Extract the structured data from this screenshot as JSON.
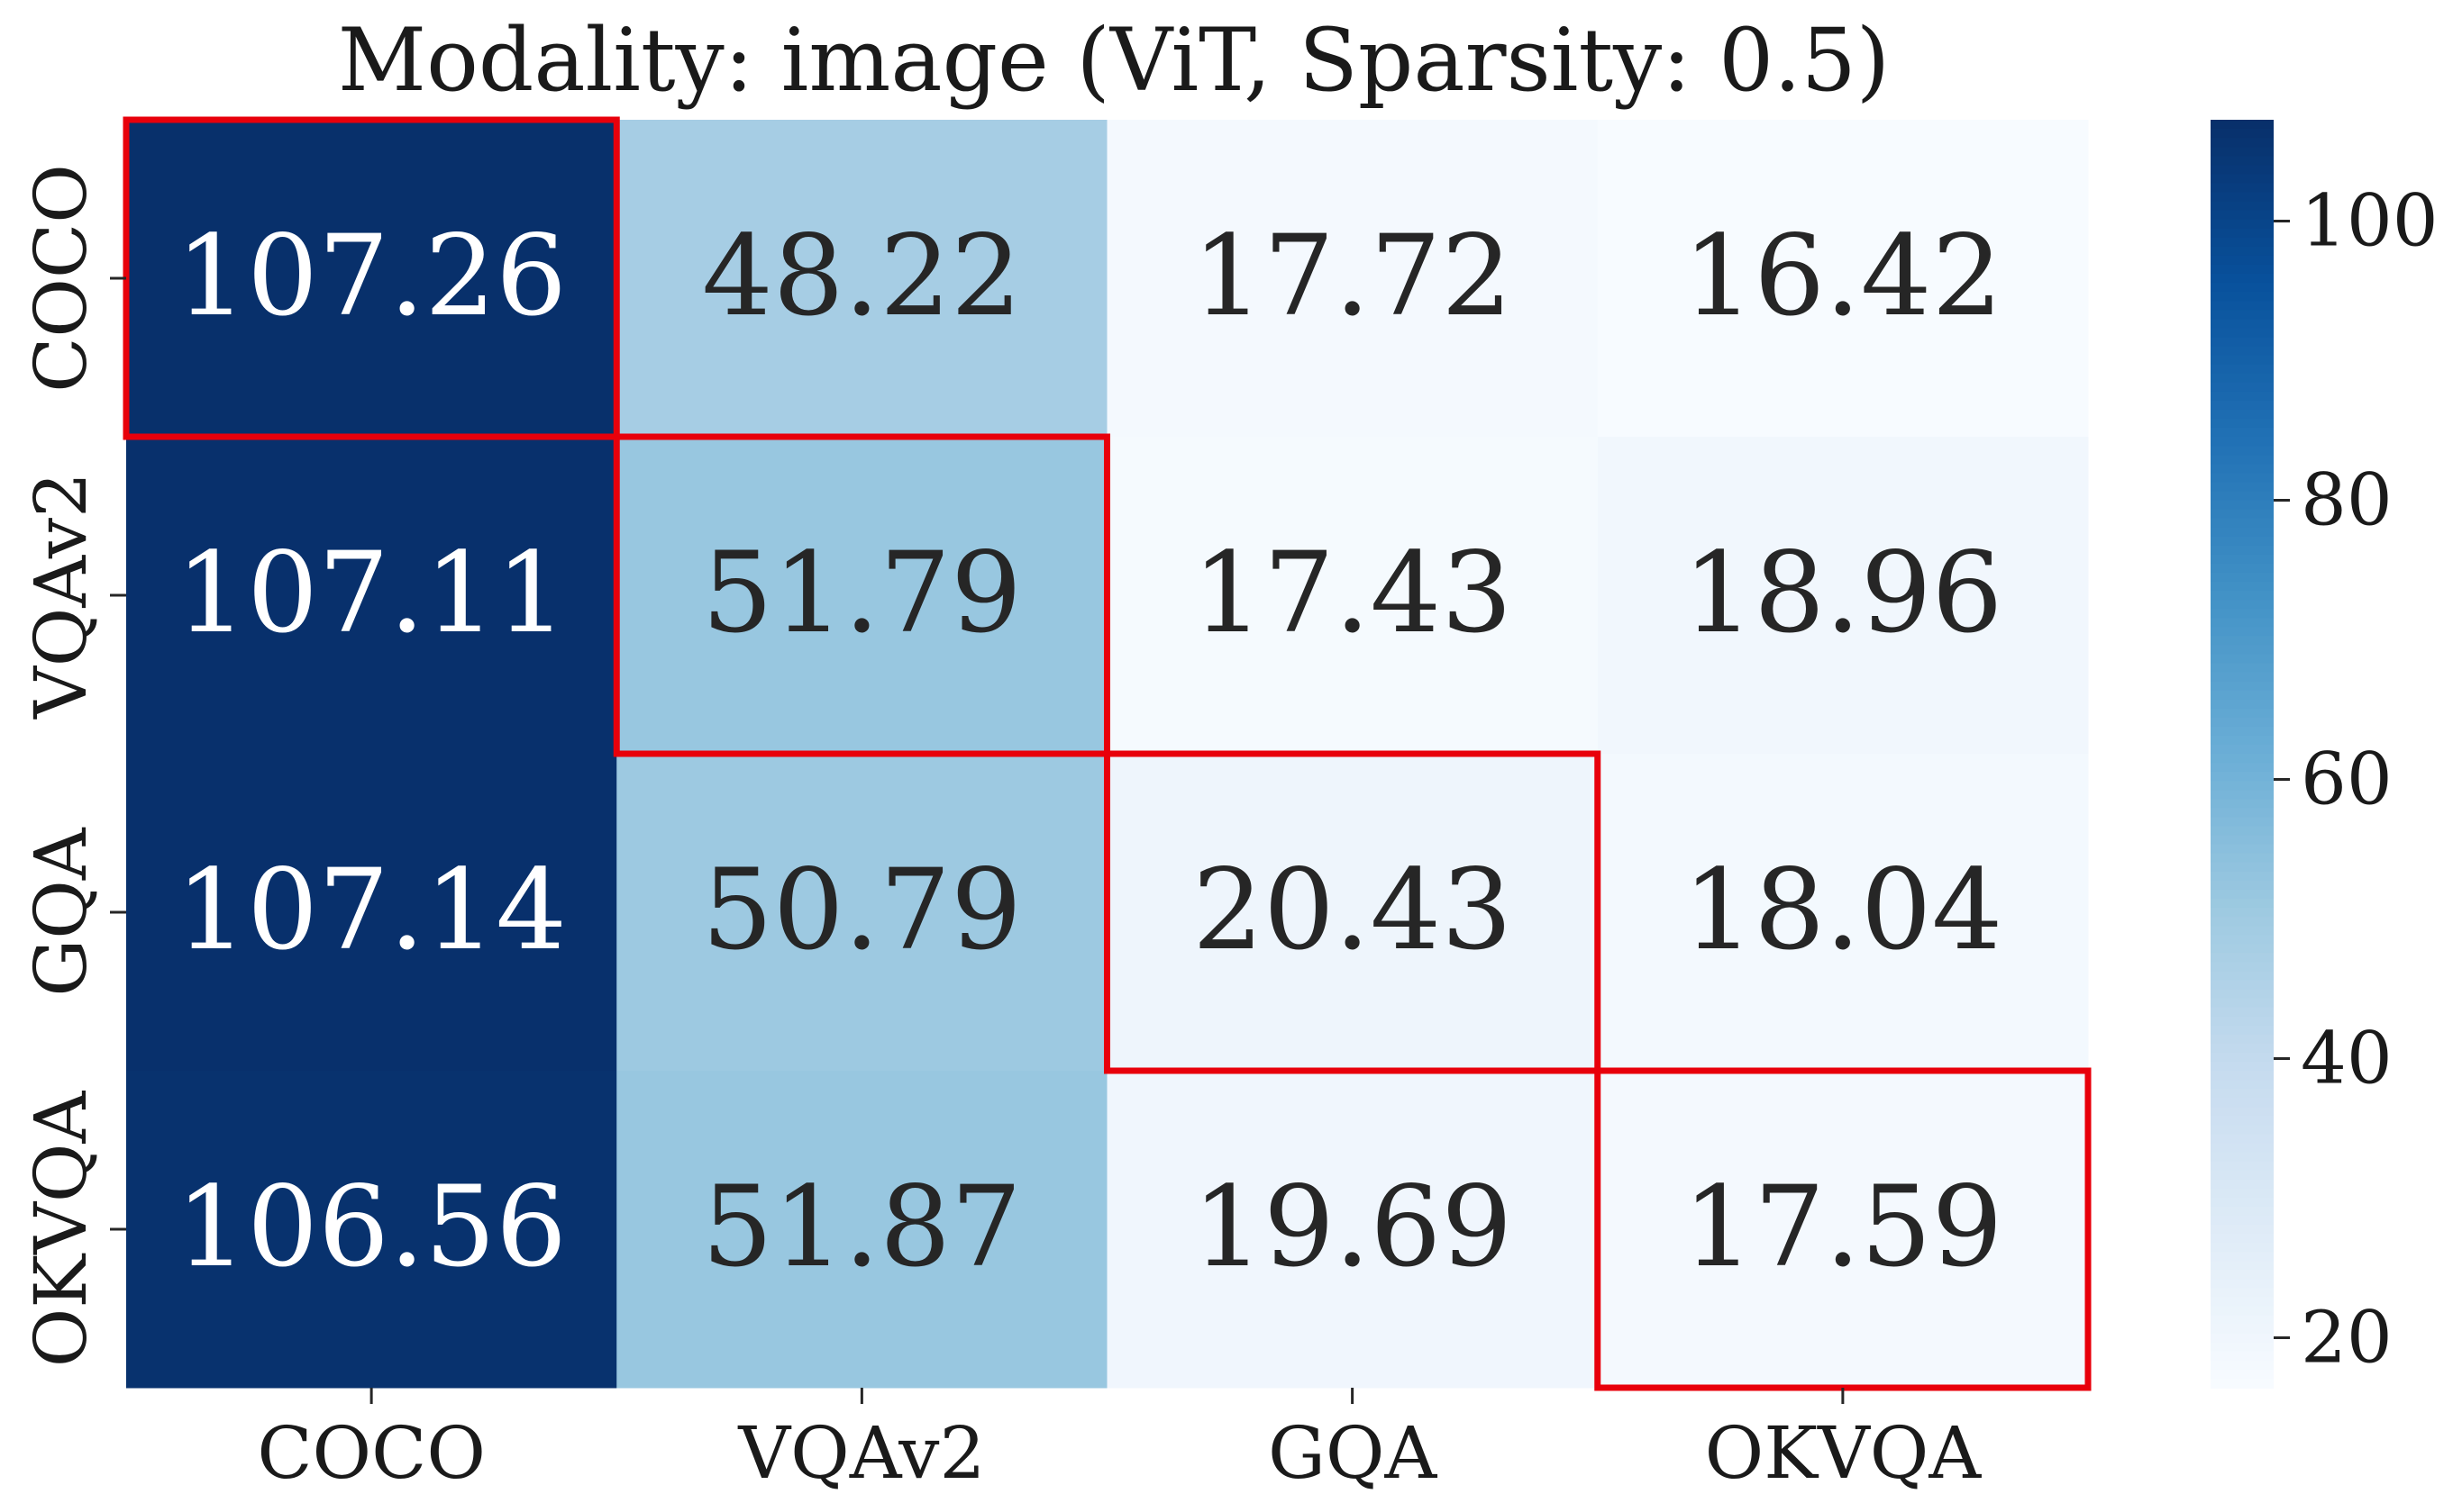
{
  "chart_data": {
    "type": "heatmap",
    "title": "Modality: image (ViT, Sparsity: 0.5)",
    "x_categories": [
      "COCO",
      "VQAv2",
      "GQA",
      "OKVQA"
    ],
    "y_categories": [
      "COCO",
      "VQAv2",
      "GQA",
      "OKVQA"
    ],
    "values": [
      [
        107.26,
        48.22,
        17.72,
        16.42
      ],
      [
        107.11,
        51.79,
        17.43,
        18.96
      ],
      [
        107.14,
        50.79,
        20.43,
        18.04
      ],
      [
        106.56,
        51.87,
        19.69,
        17.59
      ]
    ],
    "value_labels": [
      [
        "107.26",
        "48.22",
        "17.72",
        "16.42"
      ],
      [
        "107.11",
        "51.79",
        "17.43",
        "18.96"
      ],
      [
        "107.14",
        "50.79",
        "20.43",
        "18.04"
      ],
      [
        "106.56",
        "51.87",
        "19.69",
        "17.59"
      ]
    ],
    "colormap": "Blues",
    "vmin": 16.42,
    "vmax": 107.26,
    "colorbar_ticks": [
      20,
      40,
      60,
      80,
      100
    ],
    "colorbar_tick_labels": [
      "20",
      "40",
      "60",
      "80",
      "100"
    ],
    "highlight": "diagonal",
    "highlight_color": "#e8000b"
  }
}
